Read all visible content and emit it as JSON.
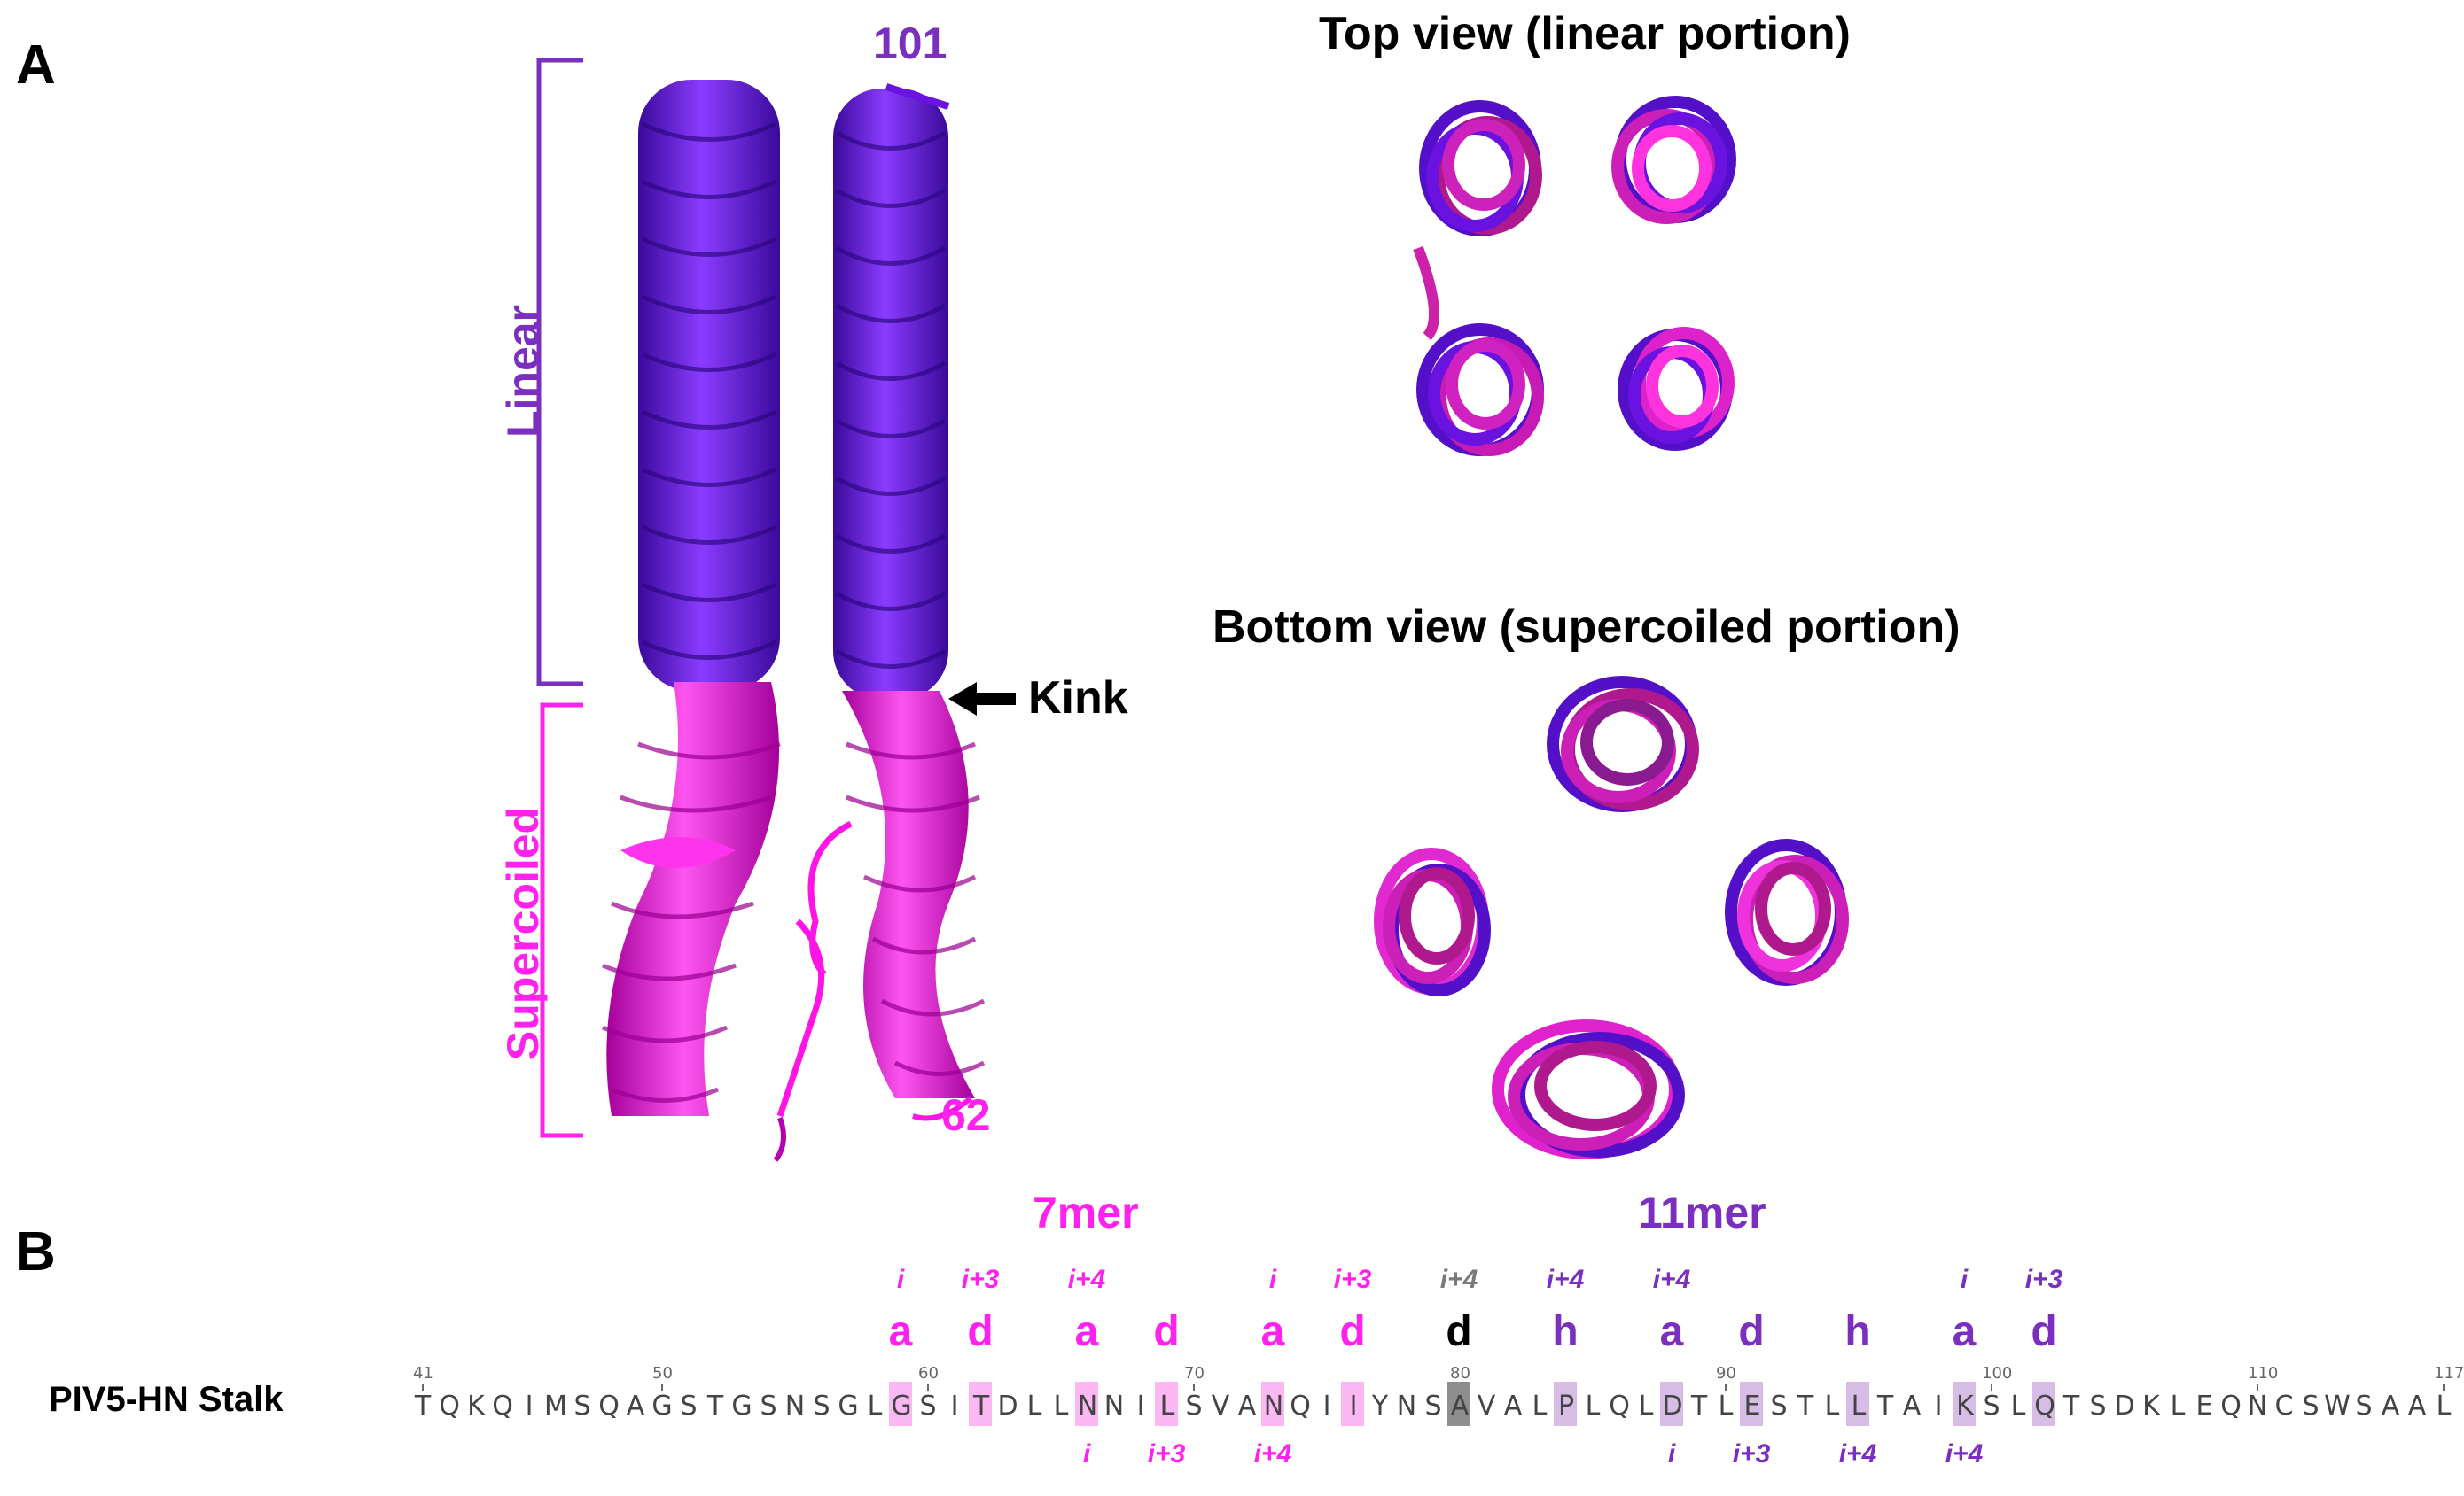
{
  "panel_a": {
    "letter": "A"
  },
  "panel_b": {
    "letter": "B"
  },
  "labels": {
    "residue_top": "101",
    "residue_bottom": "62",
    "linear": "Linear",
    "supercoiled": "Supercoiled",
    "kink": "Kink",
    "top_view": "Top view (linear portion)",
    "bottom_view": "Bottom view (supercoiled portion)"
  },
  "colors": {
    "linear": "#6a12e0",
    "supercoiled": "#ff14e6",
    "label_purple": "#7b2fbe",
    "label_pink": "#ff22ee",
    "highlight_pink": "#fbb8f2",
    "highlight_purple": "#d7bde6",
    "highlight_gray": "#8e8e8e"
  },
  "sequence": {
    "name": "PIV5-HN Stalk",
    "residues": "TQKQIMSQAGSTGSNSGLGSITDLLNNILSVANQIIYNSAVALPLQLDTLESTLLTAIKSLQTSDKLEQNCSWSAAL",
    "start": 41,
    "end": 117,
    "ruler": [
      "41",
      "50",
      "60",
      "70",
      "80",
      "90",
      "100",
      "110",
      "117"
    ],
    "heptad": {
      "name": "7mer",
      "positions": [
        "a",
        "d",
        "a",
        "d",
        "a",
        "d"
      ],
      "top": [
        "i",
        "i+3",
        "i+4",
        "",
        "i",
        "i+3"
      ],
      "bottom": [
        "",
        "",
        "i",
        "i+3",
        "i+4",
        ""
      ]
    },
    "hendecad": {
      "name": "11mer",
      "positions": [
        "d",
        "h",
        "a",
        "d",
        "h",
        "a",
        "d"
      ],
      "top": [
        "i+4",
        "i+4",
        "i+4",
        "",
        "",
        "i",
        "i+3"
      ],
      "bottom": [
        "",
        "",
        "i",
        "i+3",
        "i+4",
        "i+4",
        ""
      ]
    }
  }
}
